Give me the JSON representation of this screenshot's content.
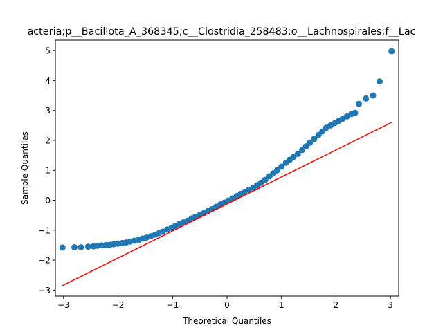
{
  "chart_data": {
    "type": "scatter",
    "title": "acteria;p__Bacillota_A_368345;c__Clostridia_258483;o__Lachnospirales;f__Lac",
    "xlabel": "Theoretical Quantiles",
    "ylabel": "Sample Quantiles",
    "xlim": [
      -3.15,
      3.15
    ],
    "ylim": [
      -3.2,
      5.35
    ],
    "xticks": [
      -3,
      -2,
      -1,
      0,
      1,
      2,
      3
    ],
    "yticks": [
      -3,
      -2,
      -1,
      0,
      1,
      2,
      3,
      4,
      5
    ],
    "xtick_labels": [
      "−3",
      "−2",
      "−1",
      "0",
      "1",
      "2",
      "3"
    ],
    "ytick_labels": [
      "−3",
      "−2",
      "−1",
      "0",
      "1",
      "2",
      "3",
      "4",
      "5"
    ],
    "grid": false,
    "legend": "none",
    "colors": {
      "points": "#1f77b4",
      "line": "#ff0000"
    },
    "series": [
      {
        "kind": "points",
        "x": [
          -3.02,
          -2.8,
          -2.68,
          -2.55,
          -2.45,
          -2.38,
          -2.3,
          -2.22,
          -2.15,
          -2.08,
          -2.0,
          -1.92,
          -1.85,
          -1.78,
          -1.7,
          -1.62,
          -1.55,
          -1.48,
          -1.4,
          -1.32,
          -1.25,
          -1.18,
          -1.1,
          -1.02,
          -0.95,
          -0.88,
          -0.8,
          -0.72,
          -0.65,
          -0.58,
          -0.5,
          -0.42,
          -0.35,
          -0.28,
          -0.2,
          -0.12,
          -0.05,
          0.02,
          0.1,
          0.18,
          0.25,
          0.32,
          0.4,
          0.48,
          0.55,
          0.62,
          0.7,
          0.78,
          0.85,
          0.92,
          1.0,
          1.08,
          1.15,
          1.22,
          1.3,
          1.38,
          1.45,
          1.52,
          1.6,
          1.68,
          1.75,
          1.82,
          1.9,
          1.98,
          2.05,
          2.12,
          2.2,
          2.28,
          2.35,
          2.42,
          2.55,
          2.68,
          2.8,
          3.02
        ],
        "y": [
          -1.58,
          -1.57,
          -1.57,
          -1.55,
          -1.54,
          -1.52,
          -1.51,
          -1.5,
          -1.49,
          -1.47,
          -1.45,
          -1.43,
          -1.41,
          -1.38,
          -1.35,
          -1.32,
          -1.28,
          -1.25,
          -1.2,
          -1.15,
          -1.1,
          -1.05,
          -0.98,
          -0.92,
          -0.86,
          -0.8,
          -0.74,
          -0.68,
          -0.61,
          -0.55,
          -0.49,
          -0.42,
          -0.36,
          -0.3,
          -0.22,
          -0.14,
          -0.08,
          -0.01,
          0.06,
          0.14,
          0.21,
          0.28,
          0.35,
          0.42,
          0.5,
          0.58,
          0.68,
          0.8,
          0.9,
          1.0,
          1.12,
          1.25,
          1.35,
          1.45,
          1.55,
          1.68,
          1.8,
          1.92,
          2.05,
          2.18,
          2.3,
          2.42,
          2.5,
          2.58,
          2.65,
          2.72,
          2.8,
          2.88,
          2.92,
          3.22,
          3.4,
          3.5,
          3.97,
          4.98
        ]
      },
      {
        "kind": "line",
        "x": [
          -3.02,
          3.02
        ],
        "y": [
          -2.85,
          2.6
        ]
      }
    ]
  }
}
